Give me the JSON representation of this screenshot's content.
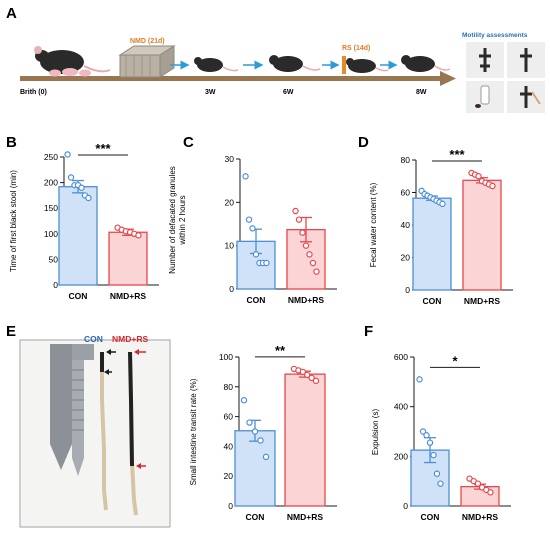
{
  "panel_labels": {
    "a": "A",
    "b": "B",
    "c": "C",
    "d": "D",
    "e": "E",
    "f": "F"
  },
  "timeline": {
    "start_label": "Brith (0)",
    "nmd_label": "NMD (21d)",
    "rs_label": "RS (14d)",
    "w3": "3W",
    "w6": "6W",
    "w8": "8W",
    "motility_title": "Motility assessments"
  },
  "photo_e": {
    "label_con": "CON",
    "label_nmd": "NMD+RS",
    "colors": {
      "con": "#2b68b0",
      "nmd": "#d7262c"
    }
  },
  "colors": {
    "con_fill": "#cfe2f8",
    "con_edge": "#4d8fd6",
    "nmd_fill": "#fbd5d5",
    "nmd_edge": "#e8474b",
    "timeline_arrow": "#9a7650",
    "flow_arrow": "#2f9bd6",
    "nmd_text": "#e07b25",
    "rs_text": "#e07b25"
  },
  "chart_data": [
    {
      "id": "B",
      "type": "bar",
      "ylabel": "Time of first black stool (min)",
      "ylim": [
        0,
        250
      ],
      "yticks": [
        0,
        50,
        100,
        150,
        200,
        250
      ],
      "categories": [
        "CON",
        "NMD+RS"
      ],
      "values": [
        192,
        103
      ],
      "sem": [
        12,
        6
      ],
      "points": [
        [
          255,
          210,
          195,
          195,
          190,
          175,
          170
        ],
        [
          112,
          108,
          105,
          103,
          100,
          97
        ]
      ],
      "significance": "***"
    },
    {
      "id": "C",
      "type": "bar",
      "ylabel": "Number of defacated granules\nwithin 2 hours",
      "ylim": [
        0,
        30
      ],
      "yticks": [
        0,
        10,
        20,
        30
      ],
      "categories": [
        "CON",
        "NMD+RS"
      ],
      "values": [
        11,
        13.7
      ],
      "sem": [
        2.8,
        2.8
      ],
      "points": [
        [
          26,
          16,
          14,
          8,
          6,
          6,
          6
        ],
        [
          18,
          16,
          13,
          10,
          8,
          6,
          4
        ]
      ],
      "significance": ""
    },
    {
      "id": "D",
      "type": "bar",
      "ylabel": "Fecal water content (%)",
      "ylim": [
        0,
        80
      ],
      "yticks": [
        0,
        20,
        40,
        60,
        80
      ],
      "categories": [
        "CON",
        "NMD+RS"
      ],
      "values": [
        56.5,
        67.5
      ],
      "sem": [
        1.3,
        1.6
      ],
      "points": [
        [
          61,
          59,
          58,
          57,
          56,
          55,
          54,
          53
        ],
        [
          72,
          71,
          70,
          67,
          66,
          65,
          64
        ]
      ],
      "significance": "***"
    },
    {
      "id": "E",
      "type": "bar",
      "ylabel": "Small intestine transit rate (%)",
      "ylim": [
        0,
        100
      ],
      "yticks": [
        0,
        20,
        40,
        60,
        80,
        100
      ],
      "categories": [
        "CON",
        "NMD+RS"
      ],
      "values": [
        50.5,
        88.5
      ],
      "sem": [
        7,
        2
      ],
      "points": [
        [
          71,
          56,
          50,
          44,
          33
        ],
        [
          92,
          91,
          90,
          88,
          86,
          84
        ]
      ],
      "significance": "**"
    },
    {
      "id": "F",
      "type": "bar",
      "ylabel": "Expulsion (s)",
      "ylim": [
        0,
        600
      ],
      "yticks": [
        0,
        200,
        400,
        600
      ],
      "categories": [
        "CON",
        "NMD+RS"
      ],
      "values": [
        225,
        78
      ],
      "sem": [
        50,
        10
      ],
      "points": [
        [
          510,
          300,
          285,
          255,
          205,
          130,
          90
        ],
        [
          110,
          100,
          90,
          75,
          65,
          55
        ]
      ],
      "significance": "*"
    }
  ]
}
